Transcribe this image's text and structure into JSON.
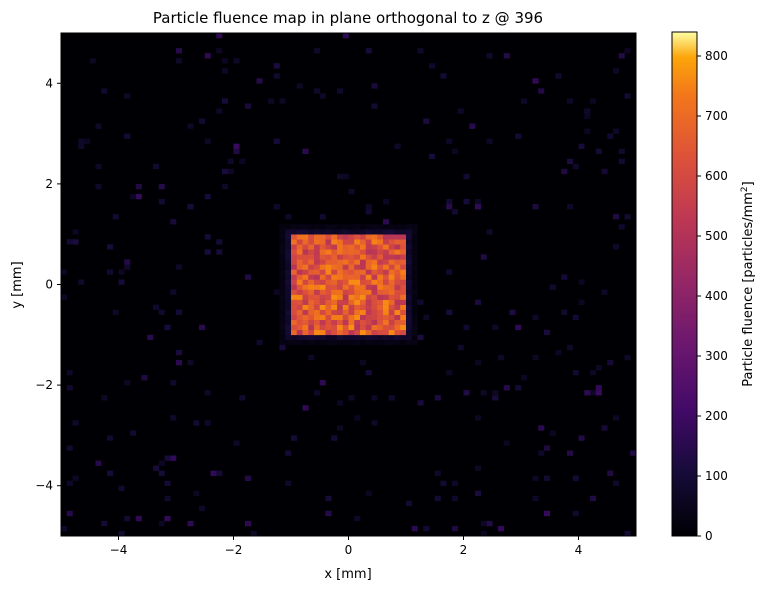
{
  "chart_data": {
    "type": "heatmap",
    "title": "Particle fluence map in plane orthogonal to z @ 396",
    "xlabel": "x [mm]",
    "ylabel": "y [mm]",
    "xlim": [
      -5,
      5
    ],
    "ylim": [
      -5,
      5
    ],
    "x_ticks": [
      -4,
      -2,
      0,
      2,
      4
    ],
    "y_ticks": [
      -4,
      -2,
      0,
      2,
      4
    ],
    "bins": 100,
    "colormap": "inferno",
    "colorbar": {
      "label": "Particle fluence [particles/mm",
      "label_superscript": "2",
      "label_suffix": "]",
      "range": [
        0,
        840
      ],
      "ticks": [
        0,
        100,
        200,
        300,
        400,
        500,
        600,
        700,
        800
      ]
    },
    "core_region": {
      "x": [
        -1,
        1
      ],
      "y": [
        -1,
        1
      ],
      "typical_value": 640
    },
    "halo_value": 60,
    "scatter_hits": 320,
    "scatter_value_range": [
      60,
      200
    ],
    "grid": false
  }
}
